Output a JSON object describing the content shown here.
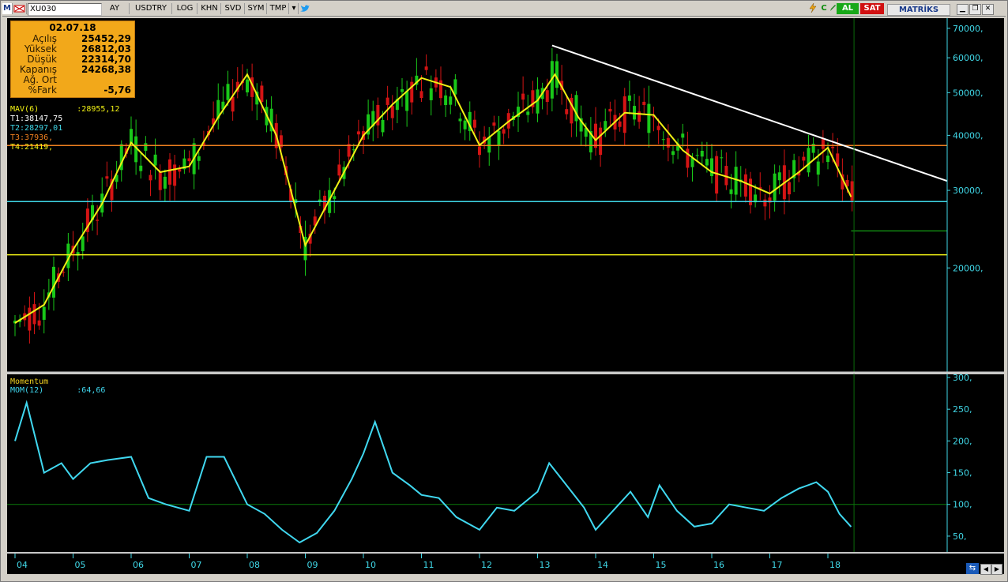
{
  "toolbar": {
    "m_icon": "M",
    "symbol": "XU030",
    "items": [
      "AY",
      "USDTRY",
      "LOG",
      "KHN",
      "SVD",
      "SYM",
      "TMP"
    ],
    "buy_label": "AL",
    "sell_label": "SAT",
    "brand": "MATRİKS"
  },
  "infobox": {
    "date": "02.07.18",
    "rows": [
      {
        "label": "Açılış",
        "value": "25452,29"
      },
      {
        "label": "Yüksek",
        "value": "26812,03"
      },
      {
        "label": "Düşük",
        "value": "22314,70"
      },
      {
        "label": "Kapanış",
        "value": "24268,38"
      },
      {
        "label": "Ağ. Ort",
        "value": ""
      },
      {
        "label": "%Fark",
        "value": "-5,76"
      }
    ]
  },
  "indicators": {
    "mav": "MAV(6)        :28955,12",
    "t1": "T1:38147,75",
    "t2": "T2:28297,01",
    "t3": "T3:37936,",
    "t4": "T4:21419,"
  },
  "momentum": {
    "title": "Momentum",
    "label": "MOM(12)       :64,66"
  },
  "colors": {
    "background": "#000000",
    "up": "#19c819",
    "down": "#d41414",
    "mav": "#f0f014",
    "t1": "#ffffff",
    "t2": "#40d8e8",
    "t3": "#f08020",
    "t4": "#f0f014",
    "momentum": "#40d8f0",
    "axis": "#40d8e8"
  },
  "chart_data": {
    "type": "line",
    "x_ticks": [
      "04",
      "05",
      "06",
      "07",
      "08",
      "09",
      "10",
      "11",
      "12",
      "13",
      "14",
      "15",
      "16",
      "17",
      "18"
    ],
    "price_axis": {
      "scale": "log",
      "ticks": [
        "70000,",
        "60000,",
        "50000,",
        "40000,",
        "30000,",
        "20000,"
      ],
      "tick_values": [
        70000,
        60000,
        50000,
        40000,
        30000,
        20000
      ],
      "ylim": [
        12000,
        72000
      ]
    },
    "momentum_axis": {
      "ticks": [
        "300,",
        "250,",
        "200,",
        "150,",
        "100,",
        "50,"
      ],
      "tick_values": [
        300,
        250,
        200,
        150,
        100,
        50
      ],
      "ylim": [
        30,
        300
      ]
    },
    "series": [
      {
        "name": "MAV(6)",
        "x": [
          2004.0,
          2004.5,
          2005.0,
          2005.5,
          2006.0,
          2006.5,
          2007.0,
          2007.5,
          2008.0,
          2008.5,
          2009.0,
          2009.5,
          2010.0,
          2010.5,
          2011.0,
          2011.5,
          2012.0,
          2012.5,
          2013.0,
          2013.3,
          2013.7,
          2014.0,
          2014.5,
          2015.0,
          2015.5,
          2016.0,
          2016.5,
          2017.0,
          2017.5,
          2018.0,
          2018.4
        ],
        "values": [
          15000,
          16500,
          22000,
          28000,
          38500,
          33000,
          34000,
          44000,
          55000,
          40000,
          22500,
          30000,
          40000,
          47000,
          54000,
          51500,
          38000,
          43000,
          48000,
          55000,
          44000,
          39000,
          45000,
          44500,
          37000,
          33000,
          31500,
          29500,
          33000,
          37500,
          29000
        ]
      },
      {
        "name": "MOM(12)",
        "x": [
          2004.0,
          2004.2,
          2004.5,
          2004.8,
          2005.0,
          2005.3,
          2005.6,
          2006.0,
          2006.3,
          2006.6,
          2007.0,
          2007.3,
          2007.6,
          2008.0,
          2008.3,
          2008.6,
          2008.9,
          2009.2,
          2009.5,
          2009.8,
          2010.0,
          2010.2,
          2010.5,
          2010.8,
          2011.0,
          2011.3,
          2011.6,
          2012.0,
          2012.3,
          2012.6,
          2013.0,
          2013.2,
          2013.5,
          2013.8,
          2014.0,
          2014.3,
          2014.6,
          2014.9,
          2015.1,
          2015.4,
          2015.7,
          2016.0,
          2016.3,
          2016.6,
          2016.9,
          2017.2,
          2017.5,
          2017.8,
          2018.0,
          2018.2,
          2018.4
        ],
        "values": [
          200,
          260,
          150,
          165,
          140,
          165,
          170,
          175,
          110,
          100,
          90,
          175,
          175,
          100,
          85,
          60,
          40,
          55,
          90,
          140,
          180,
          230,
          150,
          130,
          115,
          110,
          80,
          60,
          95,
          90,
          120,
          165,
          130,
          95,
          60,
          90,
          120,
          80,
          130,
          90,
          65,
          70,
          100,
          95,
          90,
          110,
          125,
          135,
          120,
          85,
          64.66
        ]
      }
    ],
    "hlines": [
      {
        "name": "T1",
        "value": 38147.75
      },
      {
        "name": "T2",
        "value": 28297.01
      },
      {
        "name": "T3",
        "value": 37936
      },
      {
        "name": "T4",
        "value": 21419
      }
    ]
  }
}
